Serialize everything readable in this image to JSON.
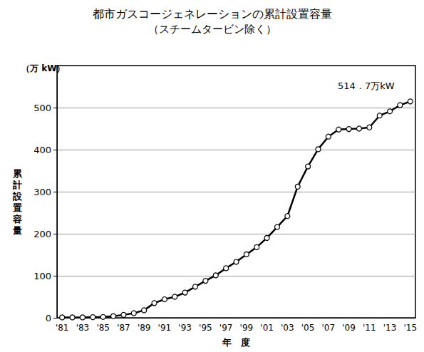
{
  "chart_data": {
    "type": "line",
    "title": "都市ガスコージェネレーションの累計設置容量",
    "subtitle": "（スチームタービン除く）",
    "ylabel": "累計設置容量",
    "yunit": "（万 kW）",
    "xlabel": "年　度",
    "categories": [
      "'81",
      null,
      "'83",
      null,
      "'85",
      null,
      "'87",
      null,
      "'89",
      null,
      "'91",
      null,
      "'93",
      null,
      "'95",
      null,
      "'97",
      null,
      "'99",
      null,
      "'01",
      null,
      "'03",
      null,
      "'05",
      null,
      "'07",
      null,
      "'09",
      null,
      "'11",
      null,
      "'13",
      null,
      "'15"
    ],
    "values": [
      1,
      1,
      1,
      1.5,
      2,
      4,
      7,
      11,
      18,
      35,
      44,
      50,
      60,
      74,
      88,
      101,
      118,
      133,
      151,
      168,
      190,
      216,
      242,
      312,
      360,
      401,
      431,
      448,
      449,
      450,
      453,
      481,
      491,
      506,
      514.7
    ],
    "color": "#000000",
    "marker": "circle",
    "ylim": [
      0,
      600
    ],
    "yticks": [
      0,
      100,
      200,
      300,
      400,
      500
    ],
    "grid": true,
    "annotations": [
      {
        "text": "514．7万kW",
        "x": "'15",
        "y": 514.7
      }
    ]
  }
}
